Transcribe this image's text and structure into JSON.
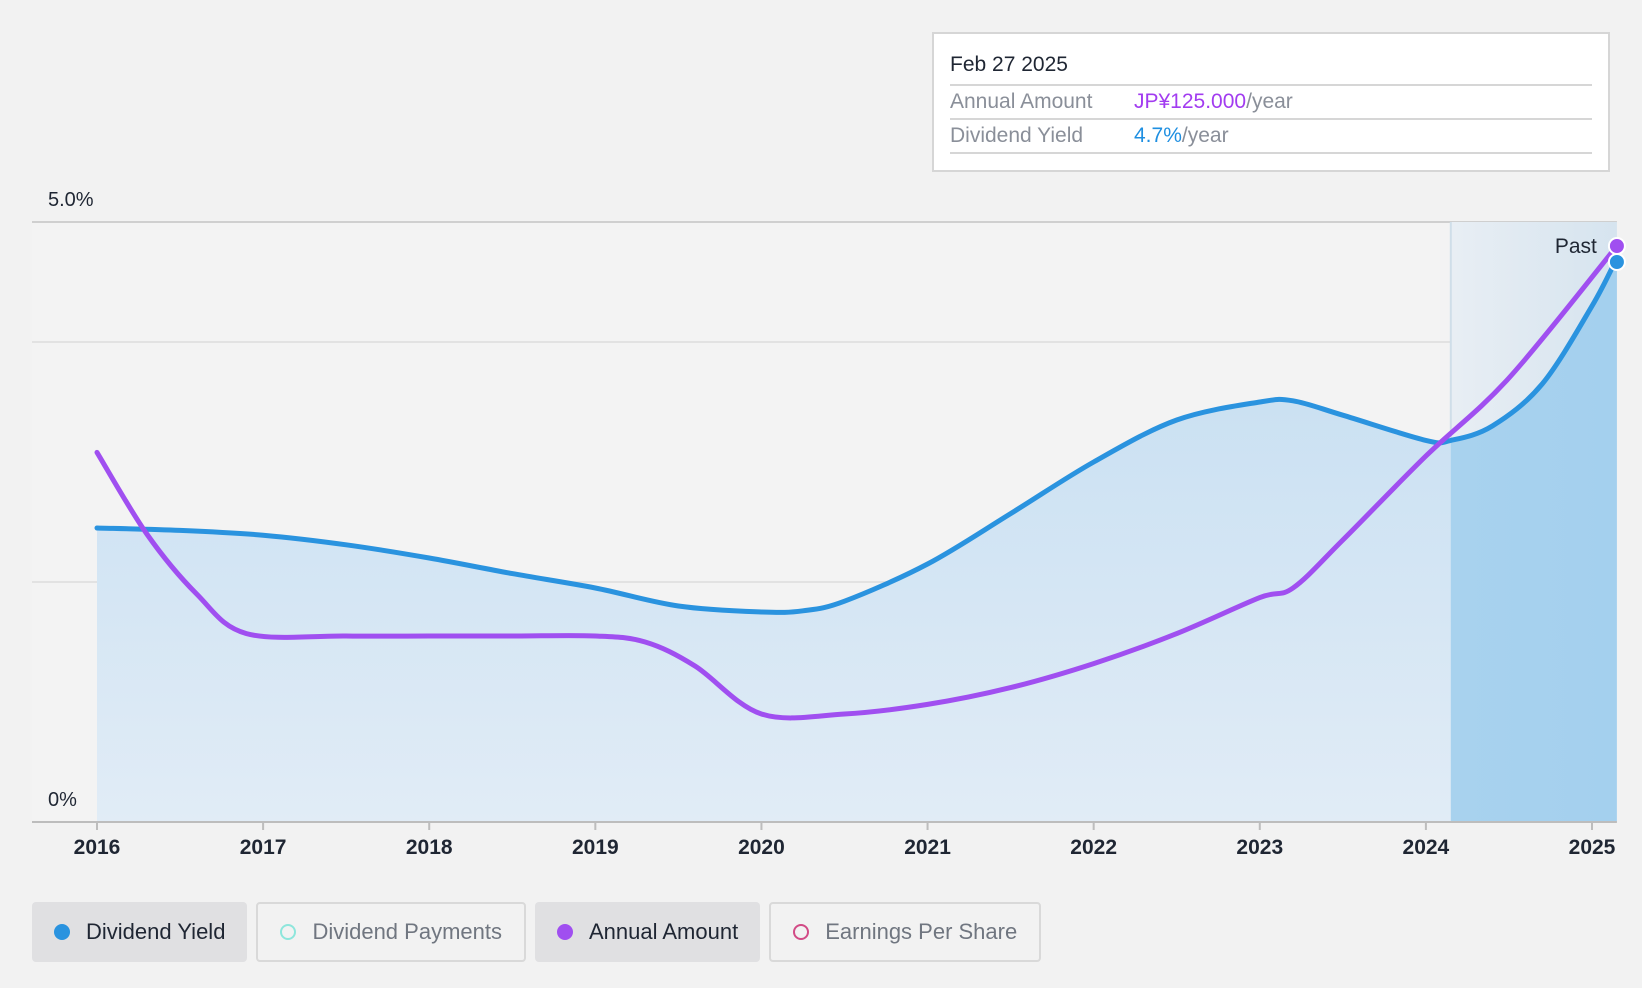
{
  "tooltip": {
    "date": "Feb 27 2025",
    "amount_label": "Annual Amount",
    "amount_value": "JP¥125.000",
    "amount_unit": "/year",
    "yield_label": "Dividend Yield",
    "yield_value": "4.7%",
    "yield_unit": "/year"
  },
  "legend": [
    {
      "label": "Dividend Yield",
      "color": "#2a93df",
      "filled": true,
      "active": true
    },
    {
      "label": "Dividend Payments",
      "color": "#8ee6dc",
      "filled": false,
      "active": false
    },
    {
      "label": "Annual Amount",
      "color": "#a04ff0",
      "filled": true,
      "active": true
    },
    {
      "label": "Earnings Per Share",
      "color": "#d24b86",
      "filled": false,
      "active": false
    }
  ],
  "chart_data": {
    "type": "area",
    "x_ticks": [
      "2016",
      "2017",
      "2018",
      "2019",
      "2020",
      "2021",
      "2022",
      "2023",
      "2024",
      "2025"
    ],
    "y_tick_labels": [
      "5.0%",
      "0%"
    ],
    "ylim": [
      0,
      5.0
    ],
    "xlim": [
      2015.6,
      2025.15
    ],
    "past_label": "Past",
    "past_start": 2024.15,
    "grid_values": [
      5.0,
      4.0,
      2.0
    ],
    "series": [
      {
        "name": "Dividend Yield",
        "color": "#2a93df",
        "area": true,
        "x": [
          2016.0,
          2016.5,
          2017.0,
          2017.5,
          2018.0,
          2018.5,
          2019.0,
          2019.5,
          2020.0,
          2020.25,
          2020.5,
          2021.0,
          2021.5,
          2022.0,
          2022.5,
          2023.0,
          2023.2,
          2023.5,
          2024.0,
          2024.15,
          2024.4,
          2024.7,
          2025.0,
          2025.15
        ],
        "y": [
          2.45,
          2.43,
          2.39,
          2.31,
          2.2,
          2.07,
          1.95,
          1.8,
          1.75,
          1.76,
          1.84,
          2.15,
          2.57,
          3.0,
          3.35,
          3.5,
          3.51,
          3.39,
          3.18,
          3.18,
          3.3,
          3.65,
          4.3,
          4.7
        ]
      },
      {
        "name": "Annual Amount",
        "color": "#a04ff0",
        "area": false,
        "x": [
          2016.0,
          2016.3,
          2016.6,
          2016.9,
          2017.5,
          2018.0,
          2018.5,
          2019.0,
          2019.3,
          2019.6,
          2020.0,
          2020.5,
          2021.0,
          2021.5,
          2022.0,
          2022.5,
          2023.0,
          2023.2,
          2023.5,
          2024.0,
          2024.5,
          2025.15
        ],
        "y": [
          3.08,
          2.4,
          1.9,
          1.57,
          1.55,
          1.55,
          1.55,
          1.55,
          1.5,
          1.3,
          0.9,
          0.9,
          0.98,
          1.12,
          1.32,
          1.57,
          1.87,
          1.95,
          2.35,
          3.05,
          3.7,
          4.8
        ]
      }
    ]
  }
}
